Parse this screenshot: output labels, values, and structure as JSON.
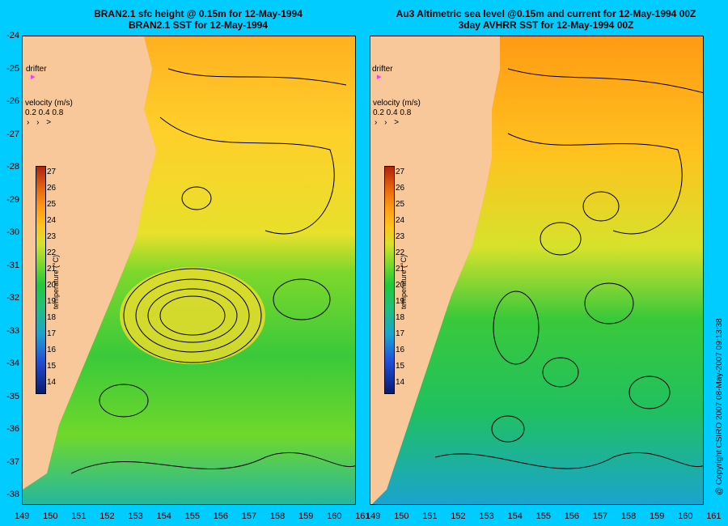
{
  "left_panel": {
    "title_line1": "BRAN2.1 sfc height @ 0.15m for 12-May-1994",
    "title_line2": "BRAN2.1 SST for 12-May-1994",
    "drifter_label": "drifter",
    "velocity_title": "velocity (m/s)",
    "velocity_values": "0.2 0.4 0.8",
    "colorbar_label": "temperature (°C)"
  },
  "right_panel": {
    "title_line1": "Au3 Altimetric sea level  @0.15m and current for 12-May-1994 00Z",
    "title_line2": "3day AVHRR SST for 12-May-1994 00Z",
    "drifter_label": "drifter",
    "velocity_title": "velocity (m/s)",
    "velocity_values": "0.2 0.4 0.8",
    "colorbar_label": "temperature (°C)"
  },
  "axes": {
    "lat_ticks": [
      "-24",
      "-25",
      "-26",
      "-27",
      "-28",
      "-29",
      "-30",
      "-31",
      "-32",
      "-33",
      "-34",
      "-35",
      "-36",
      "-37",
      "-38"
    ],
    "lon_ticks_left": [
      "149",
      "150",
      "151",
      "152",
      "153",
      "154",
      "155",
      "156",
      "157",
      "158",
      "159",
      "160",
      "161"
    ],
    "lon_ticks_right": [
      "149",
      "150",
      "151",
      "152",
      "153",
      "154",
      "155",
      "156",
      "157",
      "158",
      "159",
      "160",
      "161"
    ]
  },
  "colorbar_ticks": [
    "27",
    "26",
    "25",
    "24",
    "23",
    "22",
    "21",
    "20",
    "19",
    "18",
    "17",
    "16",
    "15",
    "14"
  ],
  "copyright": "@ Copyright CSIRO 2007  08-May-2007 09:13:38",
  "colors": {
    "background": "#00ccff",
    "land": "#f8c79a",
    "warm": "#ff9a14",
    "mid": "#d6e22b",
    "cool": "#20c93a",
    "cold": "#1aa3d0"
  }
}
